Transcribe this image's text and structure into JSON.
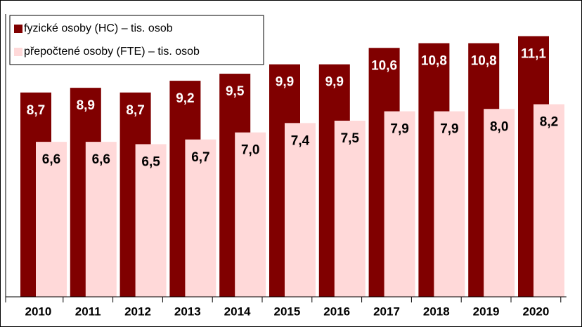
{
  "chart_data": {
    "type": "bar",
    "categories": [
      "2010",
      "2011",
      "2012",
      "2013",
      "2014",
      "2015",
      "2016",
      "2017",
      "2018",
      "2019",
      "2020"
    ],
    "series": [
      {
        "name": "fyzické osoby (HC) – tis. osob",
        "color": "#800000",
        "values": [
          8.7,
          8.9,
          8.7,
          9.2,
          9.5,
          9.9,
          9.9,
          10.6,
          10.8,
          10.8,
          11.1
        ],
        "value_labels": [
          "8,7",
          "8,9",
          "8,7",
          "9,2",
          "9,5",
          "9,9",
          "9,9",
          "10,6",
          "10,8",
          "10,8",
          "11,1"
        ]
      },
      {
        "name": "přepočtené osoby (FTE) – tis. osob",
        "color": "#ffd9d9",
        "values": [
          6.6,
          6.6,
          6.5,
          6.7,
          7.0,
          7.4,
          7.5,
          7.9,
          7.9,
          8.0,
          8.2
        ],
        "value_labels": [
          "6,6",
          "6,6",
          "6,5",
          "6,7",
          "7,0",
          "7,4",
          "7,5",
          "7,9",
          "7,9",
          "8,0",
          "8,2"
        ]
      }
    ],
    "ylim": [
      0,
      12.4
    ],
    "legend": "upper left"
  }
}
